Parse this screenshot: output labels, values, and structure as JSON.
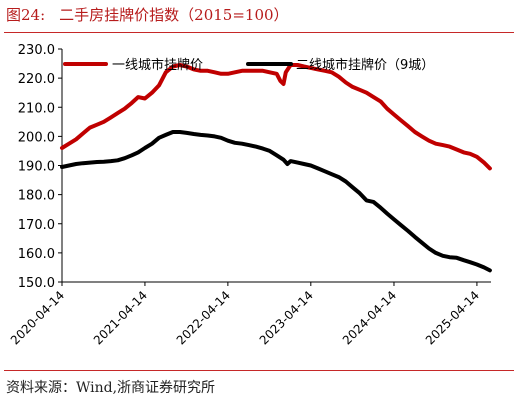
{
  "figure": {
    "number": "图24:",
    "title": "二手房挂牌价指数（2015=100）",
    "source": "资料来源：Wind,浙商证券研究所"
  },
  "colors": {
    "tier1": "#c00000",
    "tier2": "#000000",
    "accent_rule": "#c62828"
  },
  "chart_data": {
    "type": "line",
    "title": "二手房挂牌价指数（2015=100）",
    "xlabel": "",
    "ylabel": "",
    "x_ticks": [
      "2020-04-14",
      "2021-04-14",
      "2022-04-14",
      "2023-04-14",
      "2024-04-14",
      "2025-04-14"
    ],
    "y_ticks": [
      "150.0",
      "160.0",
      "170.0",
      "180.0",
      "190.0",
      "200.0",
      "210.0",
      "220.0",
      "230.0"
    ],
    "ylim": [
      150,
      230
    ],
    "xlim": [
      "2020-04-14",
      "2025-06-15"
    ],
    "grid": false,
    "legend_position": "top",
    "series": [
      {
        "name": "一线城市挂牌价",
        "color": "#c00000",
        "points": [
          [
            "2020-04-14",
            196.0
          ],
          [
            "2020-05-15",
            197.5
          ],
          [
            "2020-06-15",
            199.0
          ],
          [
            "2020-07-15",
            201.0
          ],
          [
            "2020-08-15",
            203.0
          ],
          [
            "2020-09-15",
            204.0
          ],
          [
            "2020-10-15",
            205.0
          ],
          [
            "2020-11-15",
            206.5
          ],
          [
            "2020-12-15",
            208.0
          ],
          [
            "2021-01-15",
            209.5
          ],
          [
            "2021-02-15",
            211.5
          ],
          [
            "2021-03-15",
            213.5
          ],
          [
            "2021-04-14",
            213.0
          ],
          [
            "2021-05-15",
            215.0
          ],
          [
            "2021-06-15",
            217.5
          ],
          [
            "2021-07-15",
            222.0
          ],
          [
            "2021-08-15",
            224.0
          ],
          [
            "2021-09-15",
            224.5
          ],
          [
            "2021-10-15",
            224.0
          ],
          [
            "2021-11-15",
            223.0
          ],
          [
            "2021-12-15",
            222.5
          ],
          [
            "2022-01-15",
            222.5
          ],
          [
            "2022-02-15",
            222.0
          ],
          [
            "2022-03-15",
            221.5
          ],
          [
            "2022-04-14",
            221.5
          ],
          [
            "2022-05-15",
            222.0
          ],
          [
            "2022-06-15",
            222.5
          ],
          [
            "2022-07-15",
            222.5
          ],
          [
            "2022-08-15",
            222.5
          ],
          [
            "2022-09-15",
            222.5
          ],
          [
            "2022-10-15",
            222.0
          ],
          [
            "2022-11-15",
            221.5
          ],
          [
            "2022-12-01",
            219.0
          ],
          [
            "2022-12-15",
            218.0
          ],
          [
            "2022-12-25",
            222.0
          ],
          [
            "2023-01-15",
            224.5
          ],
          [
            "2023-02-15",
            224.5
          ],
          [
            "2023-03-15",
            224.0
          ],
          [
            "2023-04-14",
            223.5
          ],
          [
            "2023-05-15",
            223.0
          ],
          [
            "2023-06-15",
            222.5
          ],
          [
            "2023-07-15",
            222.0
          ],
          [
            "2023-08-15",
            220.5
          ],
          [
            "2023-09-15",
            218.5
          ],
          [
            "2023-10-15",
            217.0
          ],
          [
            "2023-11-15",
            216.0
          ],
          [
            "2023-12-15",
            215.0
          ],
          [
            "2024-01-15",
            213.5
          ],
          [
            "2024-02-15",
            212.0
          ],
          [
            "2024-03-15",
            209.5
          ],
          [
            "2024-04-14",
            207.5
          ],
          [
            "2024-05-15",
            205.5
          ],
          [
            "2024-06-15",
            203.5
          ],
          [
            "2024-07-15",
            201.5
          ],
          [
            "2024-08-15",
            200.0
          ],
          [
            "2024-09-15",
            198.5
          ],
          [
            "2024-10-15",
            197.5
          ],
          [
            "2024-11-15",
            197.0
          ],
          [
            "2024-12-15",
            196.5
          ],
          [
            "2025-01-15",
            195.5
          ],
          [
            "2025-02-15",
            194.5
          ],
          [
            "2025-03-15",
            194.0
          ],
          [
            "2025-04-14",
            193.0
          ],
          [
            "2025-05-15",
            191.0
          ],
          [
            "2025-06-10",
            189.0
          ]
        ]
      },
      {
        "name": "二线城市挂牌价（9城）",
        "color": "#000000",
        "points": [
          [
            "2020-04-14",
            189.5
          ],
          [
            "2020-05-15",
            190.0
          ],
          [
            "2020-06-15",
            190.5
          ],
          [
            "2020-07-15",
            190.8
          ],
          [
            "2020-08-15",
            191.0
          ],
          [
            "2020-09-15",
            191.2
          ],
          [
            "2020-10-15",
            191.3
          ],
          [
            "2020-11-15",
            191.5
          ],
          [
            "2020-12-15",
            191.8
          ],
          [
            "2021-01-15",
            192.5
          ],
          [
            "2021-02-15",
            193.5
          ],
          [
            "2021-03-15",
            194.5
          ],
          [
            "2021-04-14",
            196.0
          ],
          [
            "2021-05-15",
            197.5
          ],
          [
            "2021-06-15",
            199.5
          ],
          [
            "2021-07-15",
            200.5
          ],
          [
            "2021-08-15",
            201.5
          ],
          [
            "2021-09-15",
            201.5
          ],
          [
            "2021-10-15",
            201.2
          ],
          [
            "2021-11-15",
            200.8
          ],
          [
            "2021-12-15",
            200.5
          ],
          [
            "2022-01-15",
            200.3
          ],
          [
            "2022-02-15",
            200.0
          ],
          [
            "2022-03-15",
            199.5
          ],
          [
            "2022-04-14",
            198.5
          ],
          [
            "2022-05-15",
            197.8
          ],
          [
            "2022-06-15",
            197.5
          ],
          [
            "2022-07-15",
            197.0
          ],
          [
            "2022-08-15",
            196.5
          ],
          [
            "2022-09-15",
            195.8
          ],
          [
            "2022-10-15",
            195.0
          ],
          [
            "2022-11-15",
            193.5
          ],
          [
            "2022-12-15",
            192.0
          ],
          [
            "2023-01-01",
            190.5
          ],
          [
            "2023-01-15",
            191.5
          ],
          [
            "2023-02-15",
            191.0
          ],
          [
            "2023-03-15",
            190.5
          ],
          [
            "2023-04-14",
            190.0
          ],
          [
            "2023-05-15",
            189.0
          ],
          [
            "2023-06-15",
            188.0
          ],
          [
            "2023-07-15",
            187.0
          ],
          [
            "2023-08-15",
            186.0
          ],
          [
            "2023-09-15",
            184.5
          ],
          [
            "2023-10-15",
            182.5
          ],
          [
            "2023-11-15",
            180.5
          ],
          [
            "2023-12-15",
            178.0
          ],
          [
            "2024-01-15",
            177.5
          ],
          [
            "2024-02-15",
            175.5
          ],
          [
            "2024-03-15",
            173.5
          ],
          [
            "2024-04-14",
            171.5
          ],
          [
            "2024-05-15",
            169.5
          ],
          [
            "2024-06-15",
            167.5
          ],
          [
            "2024-07-15",
            165.5
          ],
          [
            "2024-08-15",
            163.5
          ],
          [
            "2024-09-15",
            161.5
          ],
          [
            "2024-10-15",
            160.0
          ],
          [
            "2024-11-15",
            159.0
          ],
          [
            "2024-12-15",
            158.5
          ],
          [
            "2025-01-15",
            158.3
          ],
          [
            "2025-02-15",
            157.5
          ],
          [
            "2025-03-15",
            156.8
          ],
          [
            "2025-04-14",
            156.0
          ],
          [
            "2025-05-15",
            155.0
          ],
          [
            "2025-06-10",
            154.0
          ]
        ]
      }
    ]
  }
}
